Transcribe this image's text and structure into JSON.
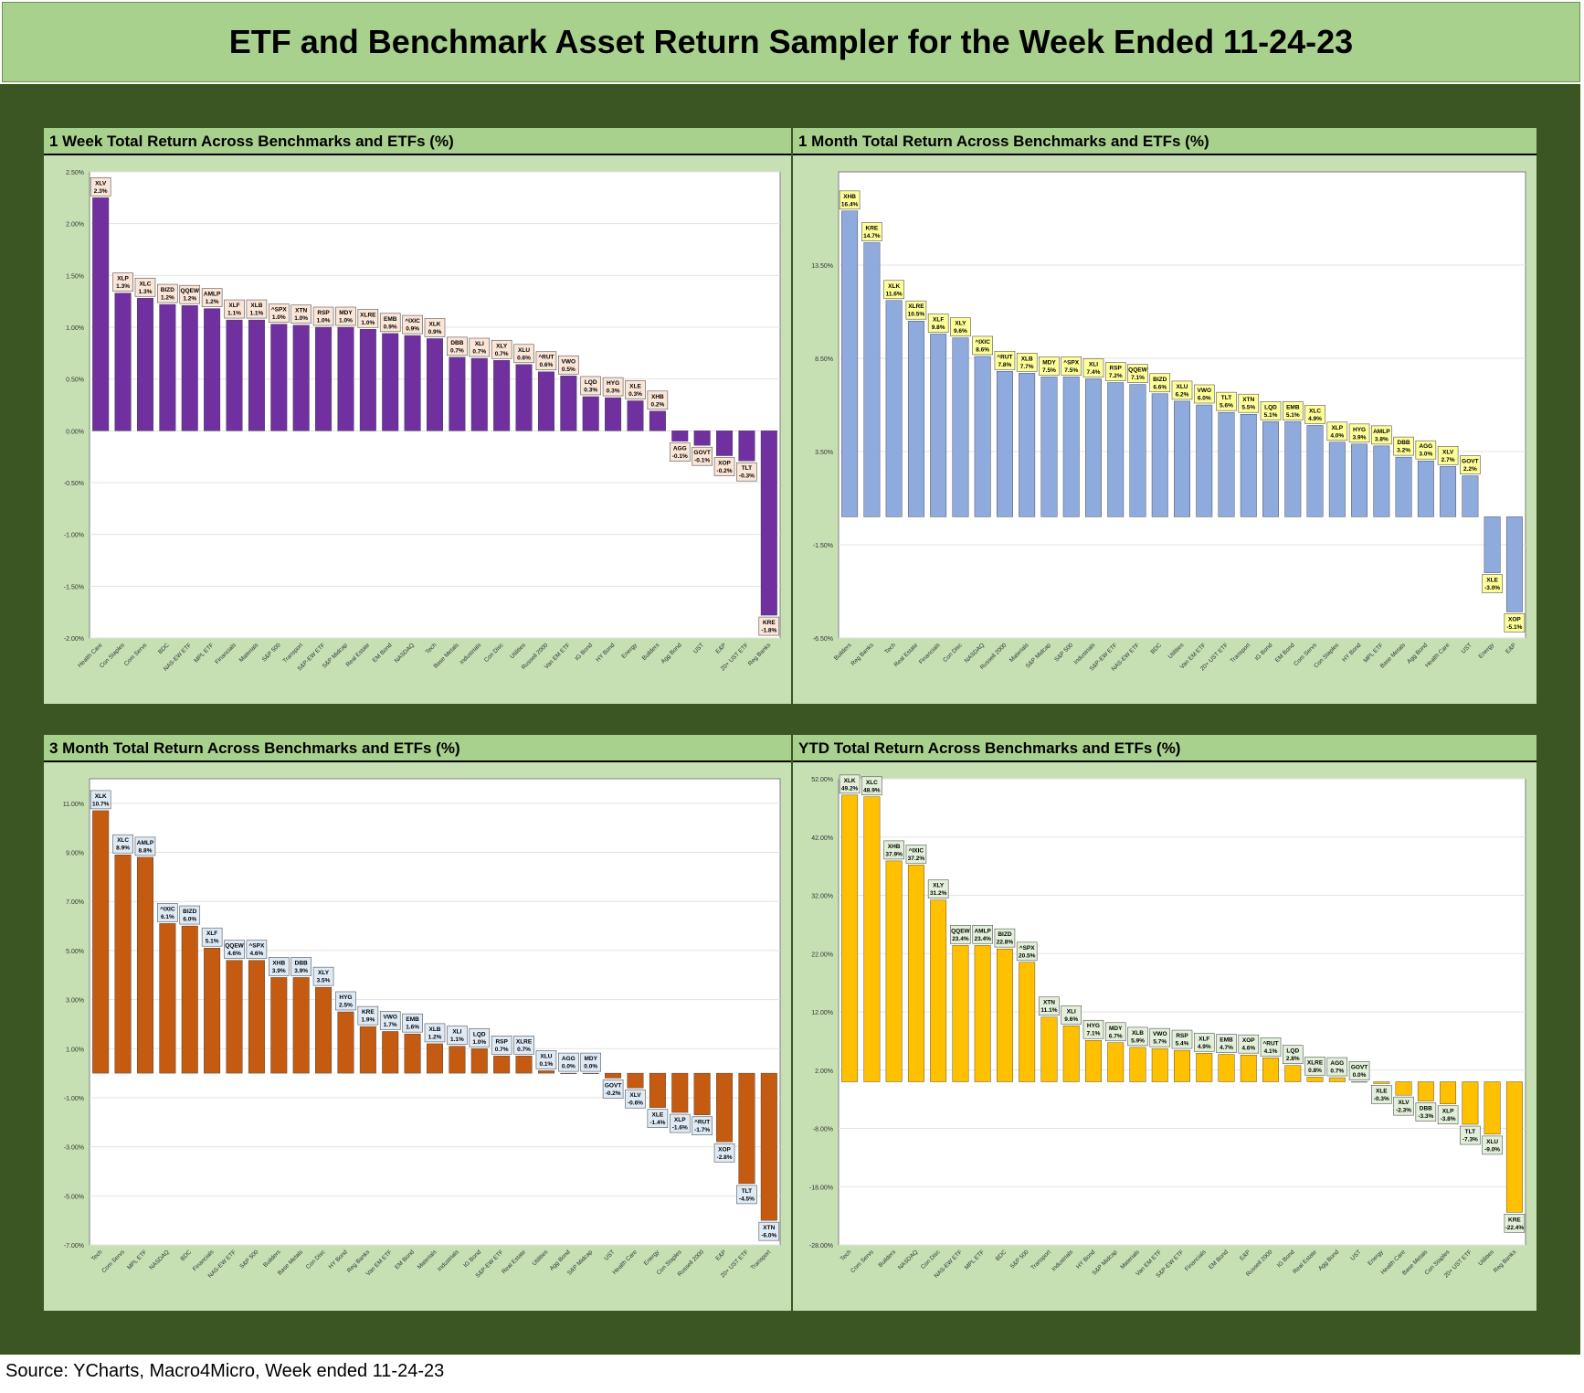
{
  "title": "ETF and Benchmark Asset Return Sampler for the Week Ended 11-24-23",
  "source": "Source: YCharts, Macro4Micro, Week ended 11-24-23",
  "chart_data": [
    {
      "type": "bar",
      "title": "1 Week Total Return Across Benchmarks and ETFs (%)",
      "color": "#7030a0",
      "label_bg": "#fbe5d6",
      "ylim": [
        -2.0,
        2.5
      ],
      "yticks": [
        2.5,
        2.0,
        1.5,
        1.0,
        0.5,
        0.0,
        -0.5,
        -1.0,
        -1.5,
        -2.0
      ],
      "ytick_labels": [
        "2.50%",
        "2.00%",
        "1.50%",
        "1.00%",
        "0.50%",
        "0.00%",
        "-0.50%",
        "-1.00%",
        "-1.50%",
        "-2.00%"
      ],
      "categories": [
        "Health Care",
        "Con Staples",
        "Com Servs",
        "BDC",
        "NAS-EW ETF",
        "MPL ETF",
        "Financials",
        "Materials",
        "S&P 500",
        "Transport",
        "S&P-EW ETF",
        "S&P Midcap",
        "Real Estate",
        "EM Bond",
        "NASDAQ",
        "Tech",
        "Base Metals",
        "Industrials",
        "Con Disc",
        "Utilities",
        "Russell 2000",
        "Van EM ETF",
        "IG Bond",
        "HY Bond",
        "Energy",
        "Builders",
        "Agg Bond",
        "UST",
        "E&P",
        "20+ UST ETF",
        "Reg Banks"
      ],
      "tickers": [
        "XLV",
        "XLP",
        "XLC",
        "BIZD",
        "QQEW",
        "AMLP",
        "XLF",
        "XLB",
        "^SPX",
        "XTN",
        "RSP",
        "MDY",
        "XLRE",
        "EMB",
        "^IXIC",
        "XLK",
        "DBB",
        "XLI",
        "XLY",
        "XLU",
        "^RUT",
        "VWO",
        "LQD",
        "HYG",
        "XLE",
        "XHB",
        "AGG",
        "GOVT",
        "XOP",
        "TLT",
        "KRE"
      ],
      "values": [
        2.25,
        1.33,
        1.28,
        1.22,
        1.21,
        1.18,
        1.07,
        1.07,
        1.03,
        1.02,
        1.0,
        1.0,
        0.98,
        0.94,
        0.92,
        0.89,
        0.71,
        0.7,
        0.68,
        0.64,
        0.57,
        0.53,
        0.33,
        0.32,
        0.29,
        0.19,
        -0.1,
        -0.14,
        -0.24,
        -0.29,
        -1.78
      ],
      "value_labels": [
        "2.3%",
        "1.3%",
        "1.3%",
        "1.2%",
        "1.2%",
        "1.2%",
        "1.1%",
        "1.1%",
        "1.0%",
        "1.0%",
        "1.0%",
        "1.0%",
        "1.0%",
        "0.9%",
        "0.9%",
        "0.9%",
        "0.7%",
        "0.7%",
        "0.7%",
        "0.6%",
        "0.6%",
        "0.5%",
        "0.3%",
        "0.3%",
        "0.3%",
        "0.2%",
        "-0.1%",
        "-0.1%",
        "-0.2%",
        "-0.3%",
        "-1.8%"
      ]
    },
    {
      "type": "bar",
      "title": "1 Month Total Return Across Benchmarks and ETFs (%)",
      "color": "#8faadc",
      "label_bg": "#ffff99",
      "ylim": [
        -6.5,
        18.5
      ],
      "yticks": [
        13.5,
        8.5,
        3.5,
        -1.5,
        -6.5
      ],
      "ytick_labels": [
        "13.50%",
        "8.50%",
        "3.50%",
        "-1.50%",
        "-6.50%"
      ],
      "categories": [
        "Builders",
        "Reg Banks",
        "Tech",
        "Real Estate",
        "Financials",
        "Con Disc",
        "NASDAQ",
        "Russell 2000",
        "Materials",
        "S&P Midcap",
        "S&P 500",
        "Industrials",
        "S&P-EW ETF",
        "NAS-EW ETF",
        "BDC",
        "Utilities",
        "Van EM ETF",
        "20+ UST ETF",
        "Transport",
        "IG Bond",
        "EM Bond",
        "Com Servs",
        "Con Staples",
        "HY Bond",
        "MPL ETF",
        "Base Metals",
        "Agg Bond",
        "Health Care",
        "UST",
        "Energy",
        "E&P"
      ],
      "tickers": [
        "XHB",
        "KRE",
        "XLK",
        "XLRE",
        "XLF",
        "XLY",
        "^IXIC",
        "^RUT",
        "XLB",
        "MDY",
        "^SPX",
        "XLI",
        "RSP",
        "QQEW",
        "BIZD",
        "XLU",
        "VWO",
        "TLT",
        "XTN",
        "LQD",
        "EMB",
        "XLC",
        "XLP",
        "HYG",
        "AMLP",
        "DBB",
        "AGG",
        "XLV",
        "GOVT",
        "XLE",
        "XOP"
      ],
      "values": [
        16.4,
        14.7,
        11.6,
        10.5,
        9.8,
        9.6,
        8.6,
        7.8,
        7.7,
        7.5,
        7.5,
        7.4,
        7.2,
        7.1,
        6.6,
        6.2,
        6.0,
        5.6,
        5.5,
        5.1,
        5.1,
        4.9,
        4.0,
        3.9,
        3.8,
        3.2,
        3.0,
        2.7,
        2.2,
        -3.0,
        -5.1
      ],
      "value_labels": [
        "16.4%",
        "14.7%",
        "11.6%",
        "10.5%",
        "9.8%",
        "9.6%",
        "8.6%",
        "7.8%",
        "7.7%",
        "7.5%",
        "7.5%",
        "7.4%",
        "7.2%",
        "7.1%",
        "6.6%",
        "6.2%",
        "6.0%",
        "5.6%",
        "5.5%",
        "5.1%",
        "5.1%",
        "4.9%",
        "4.0%",
        "3.9%",
        "3.8%",
        "3.2%",
        "3.0%",
        "2.7%",
        "2.2%",
        "-3.0%",
        "-5.1%"
      ]
    },
    {
      "type": "bar",
      "title": "3 Month Total Return Across Benchmarks and ETFs (%)",
      "color": "#c55a11",
      "label_bg": "#deebf7",
      "ylim": [
        -7.0,
        12.0
      ],
      "yticks": [
        11,
        9,
        7,
        5,
        3,
        1,
        -1,
        -3,
        -5,
        -7
      ],
      "ytick_labels": [
        "11.00%",
        "9.00%",
        "7.00%",
        "5.00%",
        "3.00%",
        "1.00%",
        "-1.00%",
        "-3.00%",
        "-5.00%",
        "-7.00%"
      ],
      "categories": [
        "Tech",
        "Com Servs",
        "MPL ETF",
        "NASDAQ",
        "BDC",
        "Financials",
        "NAS-EW ETF",
        "S&P 500",
        "Builders",
        "Base Metals",
        "Con Disc",
        "HY Bond",
        "Reg Banks",
        "Van EM ETF",
        "EM Bond",
        "Materials",
        "Industrials",
        "IG Bond",
        "S&P-EW ETF",
        "Real Estate",
        "Utilities",
        "Agg Bond",
        "S&P Midcap",
        "UST",
        "Health Care",
        "Energy",
        "Con Staples",
        "Russell 2000",
        "E&P",
        "20+ UST ETF",
        "Transport"
      ],
      "tickers": [
        "XLK",
        "XLC",
        "AMLP",
        "^IXIC",
        "BIZD",
        "XLF",
        "QQEW",
        "^SPX",
        "XHB",
        "DBB",
        "XLY",
        "HYG",
        "KRE",
        "VWO",
        "EMB",
        "XLB",
        "XLI",
        "LQD",
        "RSP",
        "XLRE",
        "XLU",
        "AGG",
        "MDY",
        "GOVT",
        "XLV",
        "XLE",
        "XLP",
        "^RUT",
        "XOP",
        "TLT",
        "XTN"
      ],
      "values": [
        10.7,
        8.9,
        8.8,
        6.1,
        6.0,
        5.1,
        4.6,
        4.6,
        3.9,
        3.9,
        3.5,
        2.5,
        1.9,
        1.7,
        1.6,
        1.2,
        1.1,
        1.0,
        0.7,
        0.7,
        0.1,
        0.0,
        0.0,
        -0.2,
        -0.6,
        -1.4,
        -1.6,
        -1.7,
        -2.8,
        -4.5,
        -6.0
      ],
      "value_labels": [
        "10.7%",
        "8.9%",
        "8.8%",
        "6.1%",
        "6.0%",
        "5.1%",
        "4.6%",
        "4.6%",
        "3.9%",
        "3.9%",
        "3.5%",
        "2.5%",
        "1.9%",
        "1.7%",
        "1.6%",
        "1.2%",
        "1.1%",
        "1.0%",
        "0.7%",
        "0.7%",
        "0.1%",
        "0.0%",
        "0.0%",
        "-0.2%",
        "-0.6%",
        "-1.4%",
        "-1.6%",
        "-1.7%",
        "-2.8%",
        "-4.5%",
        "-6.0%"
      ]
    },
    {
      "type": "bar",
      "title": "YTD Total Return Across Benchmarks and ETFs (%)",
      "color": "#ffc000",
      "label_bg": "#e2f0d9",
      "ylim": [
        -28.0,
        52.0
      ],
      "yticks": [
        52,
        42,
        32,
        22,
        12,
        2,
        -8,
        -18,
        -28
      ],
      "ytick_labels": [
        "52.00%",
        "42.00%",
        "32.00%",
        "22.00%",
        "12.00%",
        "2.00%",
        "-8.00%",
        "-18.00%",
        "-28.00%"
      ],
      "categories": [
        "Tech",
        "Com Servs",
        "Builders",
        "NASDAQ",
        "Con Disc",
        "NAS-EW ETF",
        "MPL ETF",
        "BDC",
        "S&P 500",
        "Transport",
        "Industrials",
        "HY Bond",
        "S&P Midcap",
        "Materials",
        "Van EM ETF",
        "S&P-EW ETF",
        "Financials",
        "EM Bond",
        "E&P",
        "Russell 2000",
        "IG Bond",
        "Real Estate",
        "Agg Bond",
        "UST",
        "Energy",
        "Health Care",
        "Base Metals",
        "Con Staples",
        "20+ UST ETF",
        "Utilities",
        "Reg Banks"
      ],
      "tickers": [
        "XLK",
        "XLC",
        "XHB",
        "^IXIC",
        "XLY",
        "QQEW",
        "AMLP",
        "BIZD",
        "^SPX",
        "XTN",
        "XLI",
        "HYG",
        "MDY",
        "XLB",
        "VWO",
        "RSP",
        "XLF",
        "EMB",
        "XOP",
        "^RUT",
        "LQD",
        "XLRE",
        "AGG",
        "GOVT",
        "XLE",
        "XLV",
        "DBB",
        "XLP",
        "TLT",
        "XLU",
        "KRE"
      ],
      "values": [
        49.2,
        48.9,
        37.9,
        37.2,
        31.2,
        23.4,
        23.4,
        22.8,
        20.5,
        11.1,
        9.6,
        7.1,
        6.7,
        5.9,
        5.7,
        5.4,
        4.9,
        4.7,
        4.6,
        4.1,
        2.8,
        0.8,
        0.7,
        0.0,
        -0.3,
        -2.3,
        -3.3,
        -3.8,
        -7.3,
        -9.0,
        -22.4
      ],
      "value_labels": [
        "49.2%",
        "48.9%",
        "37.9%",
        "37.2%",
        "31.2%",
        "23.4%",
        "23.4%",
        "22.8%",
        "20.5%",
        "11.1%",
        "9.6%",
        "7.1%",
        "6.7%",
        "5.9%",
        "5.7%",
        "5.4%",
        "4.9%",
        "4.7%",
        "4.6%",
        "4.1%",
        "2.8%",
        "0.8%",
        "0.7%",
        "0.0%",
        "-0.3%",
        "-2.3%",
        "-3.3%",
        "-3.8%",
        "-7.3%",
        "-9.0%",
        "-22.4%"
      ]
    }
  ]
}
